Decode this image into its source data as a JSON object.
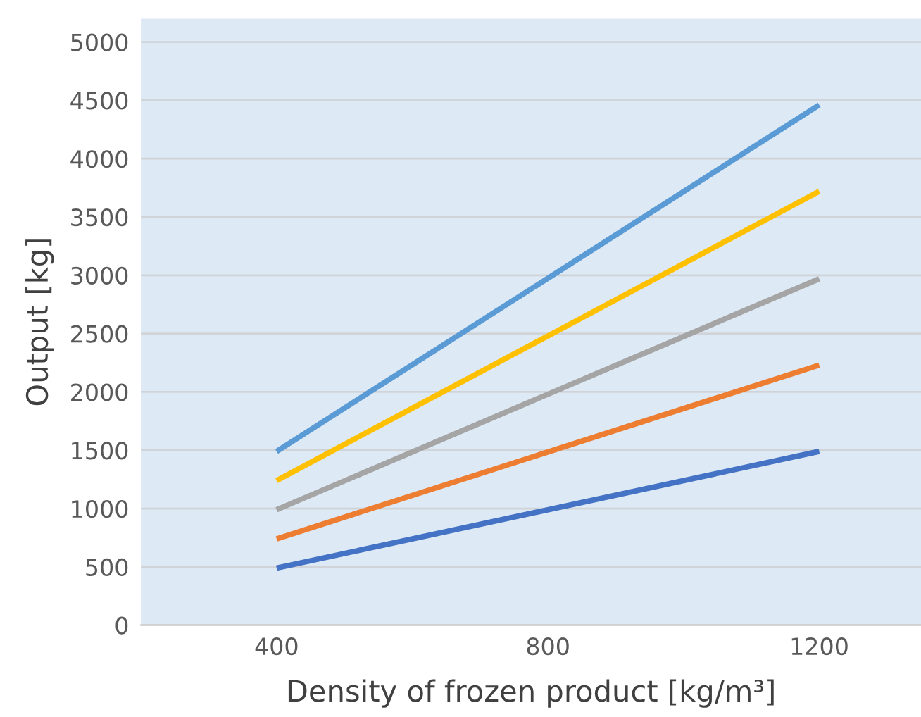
{
  "chart_data": {
    "type": "line",
    "xlabel": "Density of frozen product [kg/m³]",
    "ylabel": "Output [kg]",
    "x": [
      400,
      1200
    ],
    "series": [
      {
        "color": "#4472c4",
        "values": [
          490,
          1490
        ]
      },
      {
        "color": "#ed7d31",
        "values": [
          740,
          2230
        ]
      },
      {
        "color": "#a5a5a5",
        "values": [
          990,
          2970
        ]
      },
      {
        "color": "#ffc000",
        "values": [
          1240,
          3720
        ]
      },
      {
        "color": "#5b9bd5",
        "values": [
          1490,
          4460
        ]
      }
    ],
    "xlim": [
      200,
      1350
    ],
    "xticks": [
      400,
      800,
      1200
    ],
    "ylim": [
      0,
      5200
    ],
    "yticks": [
      0,
      500,
      1000,
      1500,
      2000,
      2500,
      3000,
      3500,
      4000,
      4500,
      5000
    ],
    "grid": "y",
    "legend": false,
    "marker": "none",
    "line_style": "solid"
  }
}
